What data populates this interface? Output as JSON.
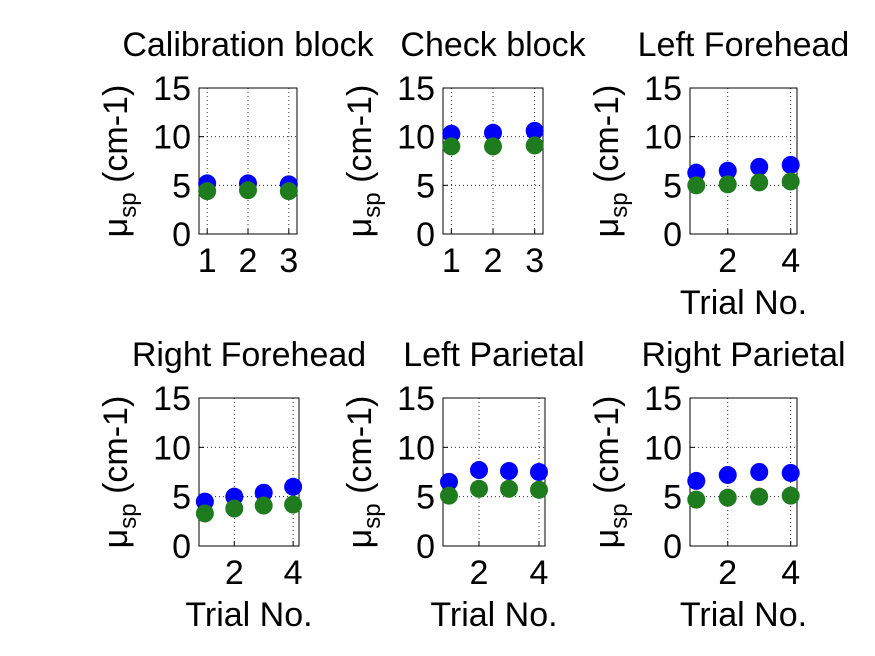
{
  "colors": {
    "series1": "#0000ff",
    "series2": "#1e7c1e"
  },
  "chart_data": [
    {
      "type": "scatter",
      "title": "Calibration block",
      "ylabel_main": "μ",
      "ylabel_sub": "sp",
      "ylabel_unit": " (cm-1)",
      "xlabel": "",
      "xlim": [
        0.8,
        3.2
      ],
      "ylim": [
        0,
        15
      ],
      "xticks": [
        1,
        2,
        3
      ],
      "yticks": [
        0,
        5,
        10,
        15
      ],
      "x": [
        1,
        2,
        3
      ],
      "series": [
        {
          "values": [
            5.2,
            5.2,
            5.1
          ]
        },
        {
          "values": [
            4.4,
            4.5,
            4.4
          ]
        }
      ]
    },
    {
      "type": "scatter",
      "title": "Check block",
      "ylabel_main": "μ",
      "ylabel_sub": "sp",
      "ylabel_unit": " (cm-1)",
      "xlabel": "",
      "xlim": [
        0.8,
        3.2
      ],
      "ylim": [
        0,
        15
      ],
      "xticks": [
        1,
        2,
        3
      ],
      "yticks": [
        0,
        5,
        10,
        15
      ],
      "x": [
        1,
        2,
        3
      ],
      "series": [
        {
          "values": [
            10.3,
            10.4,
            10.6
          ]
        },
        {
          "values": [
            9.0,
            9.0,
            9.1
          ]
        }
      ]
    },
    {
      "type": "scatter",
      "title": "Left Forehead",
      "ylabel_main": "μ",
      "ylabel_sub": "sp",
      "ylabel_unit": " (cm-1)",
      "xlabel": "Trial No.",
      "xlim": [
        0.8,
        4.2
      ],
      "ylim": [
        0,
        15
      ],
      "xticks": [
        2,
        4
      ],
      "yticks": [
        0,
        5,
        10,
        15
      ],
      "x": [
        1,
        2,
        3,
        4
      ],
      "series": [
        {
          "values": [
            6.3,
            6.5,
            6.9,
            7.1
          ]
        },
        {
          "values": [
            5.0,
            5.1,
            5.3,
            5.4
          ]
        }
      ]
    },
    {
      "type": "scatter",
      "title": "Right Forehead",
      "ylabel_main": "μ",
      "ylabel_sub": "sp",
      "ylabel_unit": " (cm-1)",
      "xlabel": "Trial No.",
      "xlim": [
        0.8,
        4.2
      ],
      "ylim": [
        0,
        15
      ],
      "xticks": [
        2,
        4
      ],
      "yticks": [
        0,
        5,
        10,
        15
      ],
      "x": [
        1,
        2,
        3,
        4
      ],
      "series": [
        {
          "values": [
            4.5,
            5.0,
            5.4,
            6.0
          ]
        },
        {
          "values": [
            3.3,
            3.8,
            4.1,
            4.2
          ]
        }
      ]
    },
    {
      "type": "scatter",
      "title": "Left Parietal",
      "ylabel_main": "μ",
      "ylabel_sub": "sp",
      "ylabel_unit": " (cm-1)",
      "xlabel": "Trial No.",
      "xlim": [
        0.8,
        4.2
      ],
      "ylim": [
        0,
        15
      ],
      "xticks": [
        2,
        4
      ],
      "yticks": [
        0,
        5,
        10,
        15
      ],
      "x": [
        1,
        2,
        3,
        4
      ],
      "series": [
        {
          "values": [
            6.5,
            7.7,
            7.6,
            7.5
          ]
        },
        {
          "values": [
            5.1,
            5.8,
            5.8,
            5.7
          ]
        }
      ]
    },
    {
      "type": "scatter",
      "title": "Right Parietal",
      "ylabel_main": "μ",
      "ylabel_sub": "sp",
      "ylabel_unit": " (cm-1)",
      "xlabel": "Trial No.",
      "xlim": [
        0.8,
        4.2
      ],
      "ylim": [
        0,
        15
      ],
      "xticks": [
        2,
        4
      ],
      "yticks": [
        0,
        5,
        10,
        15
      ],
      "x": [
        1,
        2,
        3,
        4
      ],
      "series": [
        {
          "values": [
            6.6,
            7.2,
            7.5,
            7.4
          ]
        },
        {
          "values": [
            4.7,
            4.9,
            5.0,
            5.1
          ]
        }
      ]
    }
  ]
}
